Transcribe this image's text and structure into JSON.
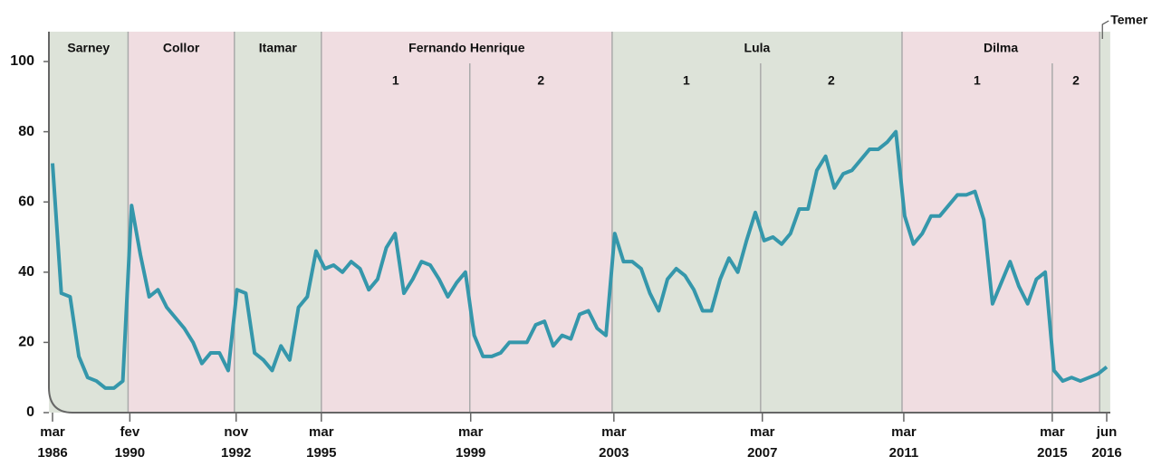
{
  "chart_data": {
    "type": "line",
    "color": "#3597ab",
    "ylim": [
      0,
      108.5
    ],
    "yticks": [
      0,
      20,
      40,
      60,
      80,
      100
    ],
    "xlim": [
      0,
      120
    ],
    "xticks": [
      {
        "value": 0,
        "label": "mar 1986"
      },
      {
        "value": 8.8,
        "label": "fev 1990"
      },
      {
        "value": 20.9,
        "label": "nov 1992"
      },
      {
        "value": 30.6,
        "label": "mar 1995"
      },
      {
        "value": 47.6,
        "label": "mar 1999"
      },
      {
        "value": 63.9,
        "label": "mar 2003"
      },
      {
        "value": 80.8,
        "label": "mar 2007"
      },
      {
        "value": 96.9,
        "label": "mar 2011"
      },
      {
        "value": 113.8,
        "label": "mar 2015"
      },
      {
        "value": 120,
        "label": "jun 2016"
      }
    ],
    "bands": [
      {
        "name": "Sarney",
        "start": -0.4,
        "end": 8.6,
        "color": "#dde3d9"
      },
      {
        "name": "Collor",
        "start": 8.6,
        "end": 20.7,
        "color": "#f0dde1"
      },
      {
        "name": "Itamar",
        "start": 20.7,
        "end": 30.6,
        "color": "#dde3d9"
      },
      {
        "name": "Fernando Henrique",
        "start": 30.6,
        "end": 63.7,
        "color": "#f0dde1",
        "terms": [
          "1",
          "2"
        ],
        "split": 47.5
      },
      {
        "name": "Lula",
        "start": 63.7,
        "end": 96.7,
        "color": "#dde3d9",
        "terms": [
          "1",
          "2"
        ],
        "split": 80.6
      },
      {
        "name": "Dilma",
        "start": 96.7,
        "end": 119.2,
        "color": "#f0dde1",
        "terms": [
          "1",
          "2"
        ],
        "split": 113.8
      },
      {
        "name": "Temer",
        "start": 119.2,
        "end": 120.4,
        "color": "#dde3d9",
        "outside": true
      }
    ],
    "values": [
      71,
      34,
      33,
      16,
      10,
      9,
      7,
      7,
      9,
      59,
      45,
      33,
      35,
      30,
      27,
      24,
      20,
      14,
      17,
      17,
      12,
      35,
      34,
      17,
      15,
      12,
      19,
      15,
      30,
      33,
      46,
      41,
      42,
      40,
      43,
      41,
      35,
      38,
      47,
      51,
      34,
      38,
      43,
      42,
      38,
      33,
      37,
      40,
      22,
      16,
      16,
      17,
      20,
      20,
      20,
      25,
      26,
      19,
      22,
      21,
      28,
      29,
      24,
      22,
      51,
      43,
      43,
      41,
      34,
      29,
      38,
      41,
      39,
      35,
      29,
      29,
      38,
      44,
      40,
      49,
      57,
      49,
      50,
      48,
      51,
      58,
      58,
      69,
      73,
      64,
      68,
      69,
      72,
      75,
      75,
      77,
      80,
      56,
      48,
      51,
      56,
      56,
      59,
      62,
      62,
      63,
      55,
      31,
      37,
      43,
      36,
      31,
      38,
      40,
      12,
      9,
      10,
      9,
      10,
      11,
      13
    ]
  }
}
